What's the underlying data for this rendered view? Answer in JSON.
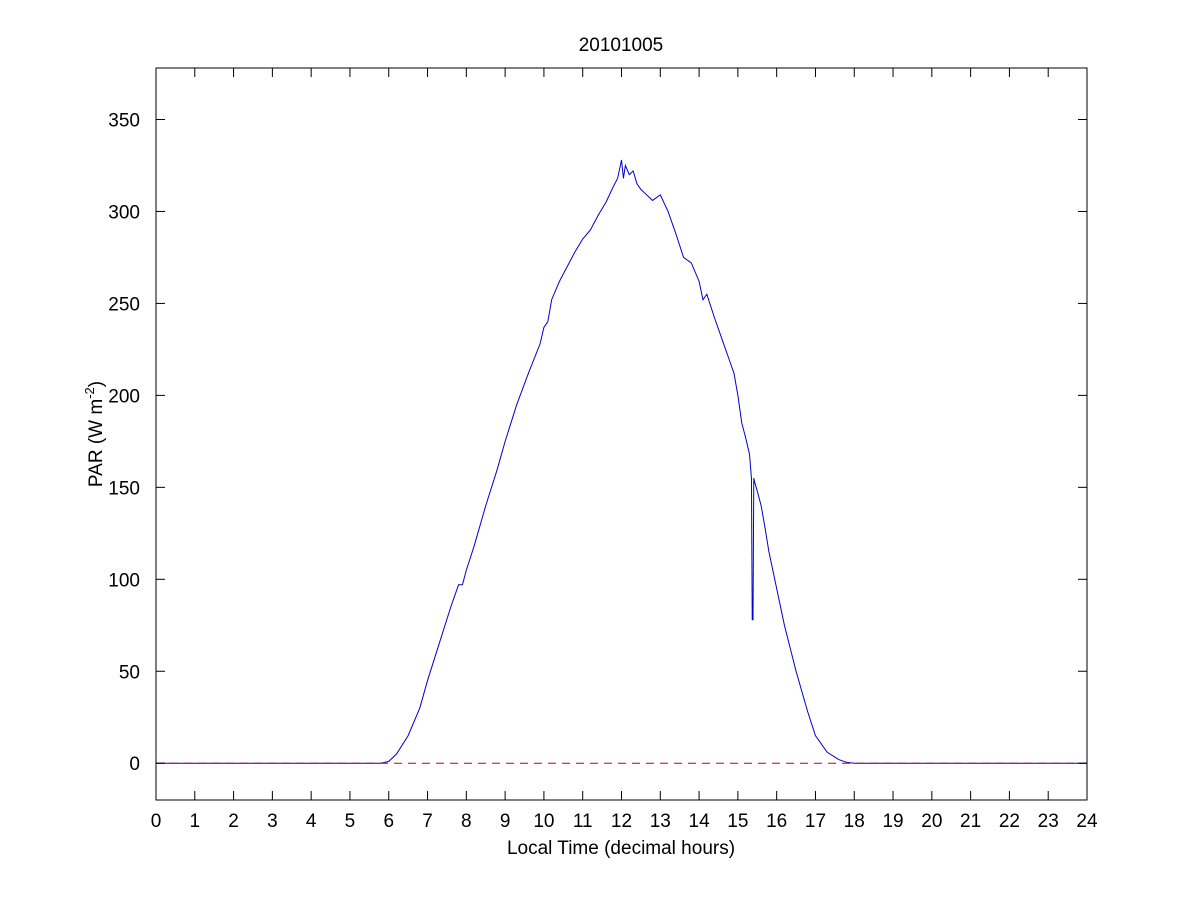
{
  "chart_data": {
    "type": "line",
    "title": "20101005",
    "xlabel": "Local Time (decimal hours)",
    "ylabel": "PAR (W m",
    "ylabel_superscript": "-2",
    "ylabel_suffix": ")",
    "xlim": [
      0,
      24
    ],
    "ylim": [
      -20,
      378
    ],
    "xticks": [
      0,
      1,
      2,
      3,
      4,
      5,
      6,
      7,
      8,
      9,
      10,
      11,
      12,
      13,
      14,
      15,
      16,
      17,
      18,
      19,
      20,
      21,
      22,
      23,
      24
    ],
    "yticks": [
      0,
      50,
      100,
      150,
      200,
      250,
      300,
      350
    ],
    "grid": false,
    "series": [
      {
        "color": "#0000cc",
        "style": "solid",
        "x": [
          0,
          5.8,
          6.0,
          6.2,
          6.5,
          6.8,
          7.0,
          7.3,
          7.6,
          7.8,
          7.9,
          8.0,
          8.2,
          8.5,
          8.8,
          9.0,
          9.3,
          9.6,
          9.9,
          10.0,
          10.1,
          10.2,
          10.4,
          10.6,
          10.8,
          11.0,
          11.2,
          11.4,
          11.6,
          11.8,
          11.9,
          12.0,
          12.05,
          12.1,
          12.2,
          12.3,
          12.4,
          12.5,
          12.6,
          12.8,
          13.0,
          13.2,
          13.4,
          13.6,
          13.8,
          14.0,
          14.1,
          14.2,
          14.4,
          14.6,
          14.8,
          14.9,
          15.0,
          15.1,
          15.2,
          15.3,
          15.35,
          15.37,
          15.39,
          15.41,
          15.43,
          15.5,
          15.6,
          15.7,
          15.8,
          16.0,
          16.2,
          16.5,
          16.8,
          17.0,
          17.3,
          17.6,
          17.8,
          18.0,
          18.2,
          24
        ],
        "values": [
          0,
          0,
          1,
          5,
          15,
          30,
          45,
          65,
          85,
          97,
          97,
          105,
          118,
          140,
          160,
          175,
          195,
          212,
          228,
          237,
          240,
          252,
          262,
          270,
          278,
          285,
          290,
          298,
          305,
          314,
          318,
          328,
          318,
          325,
          320,
          322,
          315,
          312,
          310,
          306,
          309,
          300,
          288,
          275,
          272,
          262,
          252,
          255,
          242,
          230,
          218,
          212,
          200,
          185,
          177,
          168,
          155,
          78,
          78,
          155,
          153,
          148,
          140,
          128,
          115,
          95,
          75,
          50,
          28,
          15,
          6,
          2,
          0.5,
          0,
          0,
          0
        ]
      },
      {
        "color": "#cc0000",
        "style": "dashed",
        "x": [
          0,
          24
        ],
        "values": [
          0,
          0
        ]
      }
    ]
  }
}
